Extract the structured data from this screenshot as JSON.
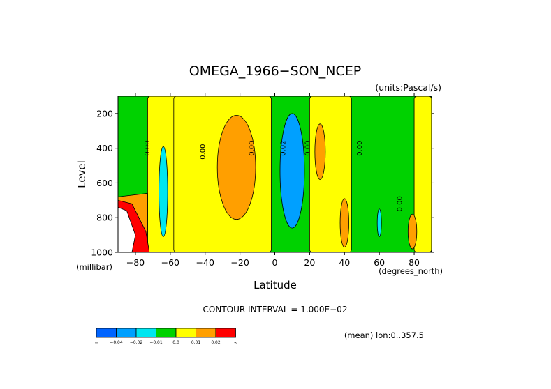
{
  "chart_data": {
    "type": "heatmap",
    "title": "OMEGA_1966−SON_NCEP",
    "units": "(units:Pascal/s)",
    "xlabel": "Latitude",
    "ylabel": "Level",
    "x_unit_label": "(degrees_north)",
    "y_unit_label": "(millibar)",
    "xlim": [
      -90,
      90
    ],
    "ylim": [
      1000,
      100
    ],
    "x_ticks": [
      {
        "value": -80,
        "label": "−80"
      },
      {
        "value": -60,
        "label": "−60"
      },
      {
        "value": -40,
        "label": "−40"
      },
      {
        "value": -20,
        "label": "−20"
      },
      {
        "value": 0,
        "label": "0"
      },
      {
        "value": 20,
        "label": "20"
      },
      {
        "value": 40,
        "label": "40"
      },
      {
        "value": 60,
        "label": "60"
      },
      {
        "value": 80,
        "label": "80"
      }
    ],
    "y_ticks": [
      {
        "value": 200,
        "label": "200"
      },
      {
        "value": 400,
        "label": "400"
      },
      {
        "value": 600,
        "label": "600"
      },
      {
        "value": 800,
        "label": "800"
      },
      {
        "value": 1000,
        "label": "1000"
      }
    ],
    "contour_interval_text": "CONTOUR INTERVAL = 1.000E−02",
    "mean_note": "(mean) lon:0..357.5",
    "contour_labels": [
      {
        "lat": -72,
        "lev": 400,
        "text": "0.00"
      },
      {
        "lat": -40,
        "lev": 420,
        "text": "0.00"
      },
      {
        "lat": -12,
        "lev": 400,
        "text": "0.00"
      },
      {
        "lat": 6,
        "lev": 400,
        "text": "0.02"
      },
      {
        "lat": 20,
        "lev": 400,
        "text": "0.00"
      },
      {
        "lat": 50,
        "lev": 400,
        "text": "0.00"
      },
      {
        "lat": 73,
        "lev": 720,
        "text": "0.00"
      }
    ],
    "legend": [
      {
        "label": "∞",
        "color": "#0064ff"
      },
      {
        "label": "−0.04",
        "color": "#00a0ff"
      },
      {
        "label": "−0.02",
        "color": "#00e6f0"
      },
      {
        "label": "−0.01",
        "color": "#00d200"
      },
      {
        "label": "0.0",
        "color": "#ffff00"
      },
      {
        "label": "0.01",
        "color": "#ff9f00"
      },
      {
        "label": "0.02",
        "color": "#ff0000"
      },
      {
        "label": "∞",
        "color": null
      }
    ],
    "regions": [
      {
        "kind": "band",
        "value_class": "yellow",
        "lat_min": -73,
        "lat_max": -56,
        "lev_top": 100,
        "lev_bot": 1000
      },
      {
        "kind": "band",
        "value_class": "yellow",
        "lat_min": -58,
        "lat_max": -2,
        "lev_top": 100,
        "lev_bot": 1000
      },
      {
        "kind": "band",
        "value_class": "yellow",
        "lat_min": 20,
        "lat_max": 44,
        "lev_top": 100,
        "lev_bot": 1000
      },
      {
        "kind": "band",
        "value_class": "yellow",
        "lat_min": 80,
        "lat_max": 90,
        "lev_top": 100,
        "lev_bot": 1000
      },
      {
        "kind": "cell",
        "value_class": "orange",
        "lat": -22,
        "lev": 510,
        "rlat": 11,
        "rlev": 300
      },
      {
        "kind": "cell",
        "value_class": "blue",
        "lat": 10,
        "lev": 530,
        "rlat": 7,
        "rlev": 330
      },
      {
        "kind": "cell",
        "value_class": "cyan",
        "lat": -64,
        "lev": 650,
        "rlat": 2.5,
        "rlev": 260
      },
      {
        "kind": "cell",
        "value_class": "orange",
        "lat": 26,
        "lev": 420,
        "rlat": 3,
        "rlev": 160
      },
      {
        "kind": "cell",
        "value_class": "orange",
        "lat": 40,
        "lev": 830,
        "rlat": 2.5,
        "rlev": 140
      },
      {
        "kind": "cell",
        "value_class": "orange",
        "lat": 79,
        "lev": 880,
        "rlat": 2.5,
        "rlev": 100
      },
      {
        "kind": "cell",
        "value_class": "cyan",
        "lat": 60,
        "lev": 830,
        "rlat": 1.2,
        "rlev": 80
      }
    ]
  }
}
